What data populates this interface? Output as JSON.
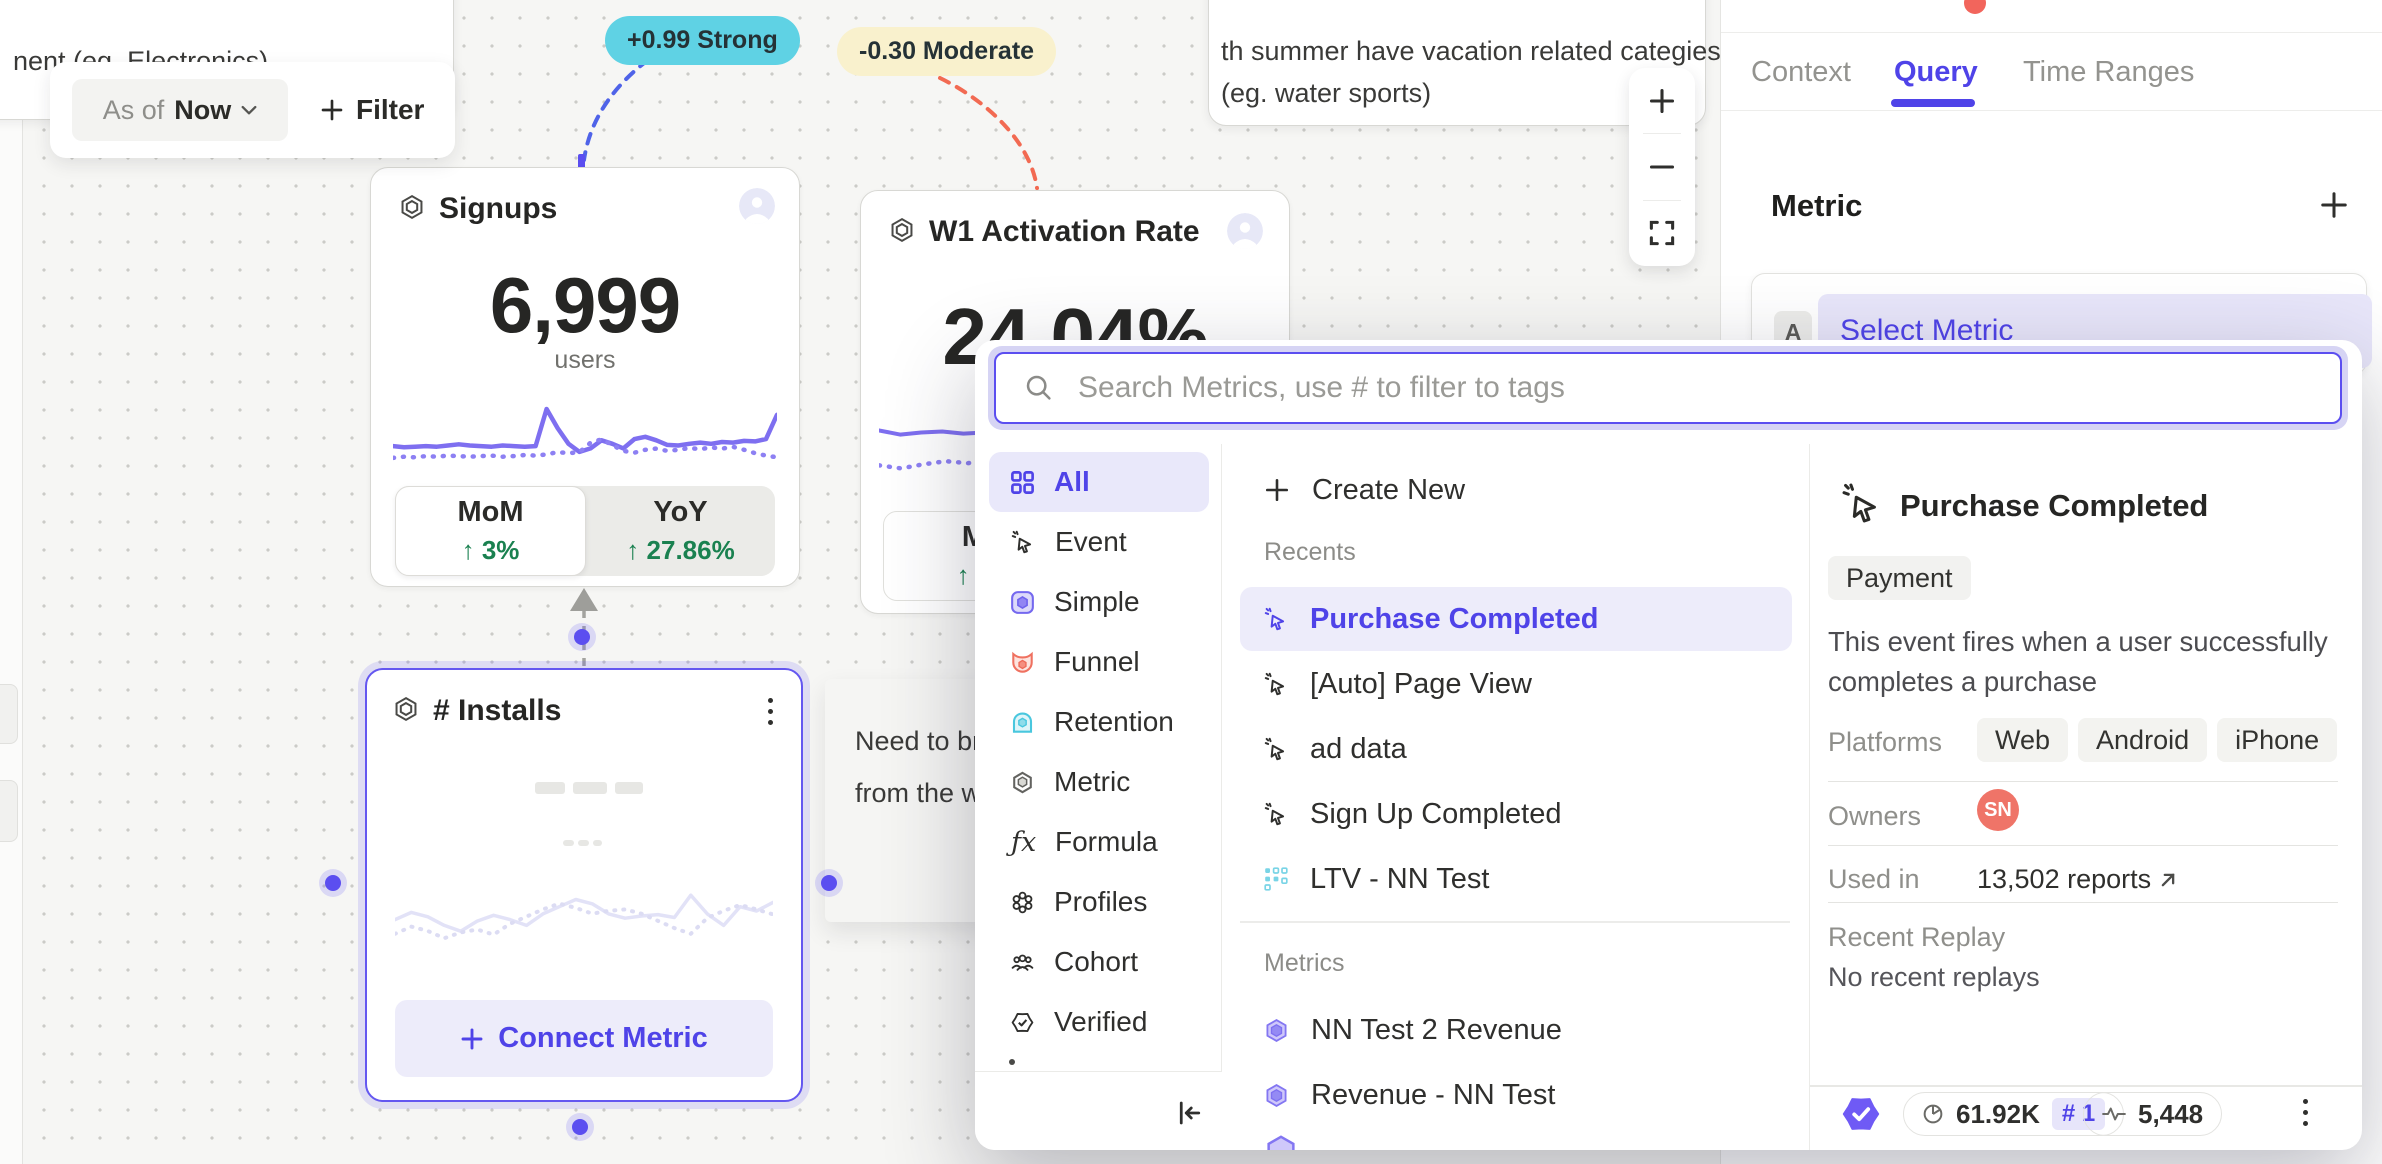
{
  "canvas": {
    "note_top_left": {
      "text": "nent  (eg. Electronics)"
    },
    "note_top_right": {
      "line1": "th summer have vacation related categies",
      "line2": "(eg. water sports)"
    },
    "note_middle": {
      "line1": "Need to brin",
      "line2": "from the wa"
    },
    "toolbar": {
      "as_of_label": "As of",
      "as_of_value": "Now",
      "filter_label": "Filter"
    },
    "annotations": {
      "positive": "+0.99 Strong",
      "negative": "-0.30 Moderate"
    },
    "cards": {
      "signups": {
        "title": "Signups",
        "value": "6,999",
        "unit": "users",
        "toggle": [
          {
            "label": "MoM",
            "delta": "↑ 3%"
          },
          {
            "label": "YoY",
            "delta": "↑ 27.86%"
          }
        ],
        "spark_solid": [
          24,
          22,
          23,
          24,
          23,
          25,
          27,
          25,
          24,
          23,
          25,
          24,
          23,
          24,
          88,
          55,
          28,
          14,
          20,
          34,
          28,
          20,
          36,
          40,
          34,
          26,
          25,
          28,
          30,
          28,
          31,
          30,
          33,
          32,
          36,
          78
        ],
        "spark_dotted": [
          14,
          16,
          15,
          17,
          16,
          18,
          17,
          16,
          17,
          18,
          16,
          17,
          19,
          18,
          20,
          24,
          22,
          24,
          40,
          46,
          36,
          26,
          23,
          28,
          30,
          26,
          28,
          31,
          29,
          32,
          30,
          33,
          28,
          22,
          18,
          15
        ]
      },
      "activation": {
        "title": "W1 Activation Rate",
        "value": "24.04%",
        "toggle_partial": {
          "label": "M",
          "delta": "↑ 3"
        },
        "spark_solid": [
          78,
          70,
          74,
          76,
          72,
          74,
          68,
          62,
          52,
          40
        ],
        "spark_dotted": [
          34,
          28,
          36,
          42,
          38,
          46,
          48,
          44,
          40,
          34
        ]
      },
      "installs": {
        "title": "# Installs",
        "connect_label": "Connect Metric",
        "spark_solid": [
          38,
          48,
          42,
          30,
          22,
          36,
          44,
          38,
          30,
          46,
          56,
          66,
          60,
          46,
          40,
          43,
          45,
          41,
          72,
          46,
          30,
          56,
          50,
          62
        ],
        "spark_dotted": [
          28,
          38,
          32,
          22,
          30,
          34,
          27,
          42,
          52,
          62,
          70,
          64,
          56,
          60,
          62,
          56,
          46,
          36,
          28,
          50,
          60,
          68,
          62,
          55
        ]
      }
    }
  },
  "side_panel": {
    "tabs": [
      {
        "label": "Context"
      },
      {
        "label": "Query"
      },
      {
        "label": "Time Ranges"
      }
    ],
    "active_tab": "Query",
    "metric_section": {
      "header": "Metric",
      "clause_letter": "A",
      "select_label": "Select Metric"
    }
  },
  "metric_picker": {
    "search_placeholder": "Search Metrics, use # to filter to tags",
    "categories": [
      {
        "label": "All"
      },
      {
        "label": "Event"
      },
      {
        "label": "Simple"
      },
      {
        "label": "Funnel"
      },
      {
        "label": "Retention"
      },
      {
        "label": "Metric"
      },
      {
        "label": "Formula"
      },
      {
        "label": "Profiles"
      },
      {
        "label": "Cohort"
      },
      {
        "label": "Verified"
      }
    ],
    "create_new_label": "Create New",
    "recents_label": "Recents",
    "recents": [
      {
        "label": "Purchase Completed"
      },
      {
        "label": "[Auto] Page View"
      },
      {
        "label": "ad data"
      },
      {
        "label": "Sign Up Completed"
      },
      {
        "label": "LTV - NN Test"
      }
    ],
    "metrics_label": "Metrics",
    "metrics": [
      {
        "label": "NN Test 2 Revenue"
      },
      {
        "label": "Revenue - NN Test"
      }
    ],
    "detail": {
      "title": "Purchase Completed",
      "tag": "Payment",
      "description": "This event fires when a user successfully completes a purchase",
      "platforms_label": "Platforms",
      "platforms": [
        {
          "label": "Web"
        },
        {
          "label": "Android"
        },
        {
          "label": "iPhone"
        }
      ],
      "owners_label": "Owners",
      "owner_initials": "SN",
      "used_in_label": "Used in",
      "used_in_value": "13,502 reports",
      "replay_label": "Recent Replay",
      "replay_empty": "No recent replays",
      "footer": {
        "query_count": "61.92K",
        "rank_badge": "# 1",
        "event_count": "5,448"
      }
    }
  },
  "colors": {
    "accent_purple": "#4f43e8",
    "spark_purple": "#7e6ff0",
    "positive_green": "#1a8150",
    "coral": "#ef7468",
    "cyan": "#5fd2e4",
    "annotation_yellow": "#f9f1cd",
    "badge_purple": "#6f5af5"
  }
}
